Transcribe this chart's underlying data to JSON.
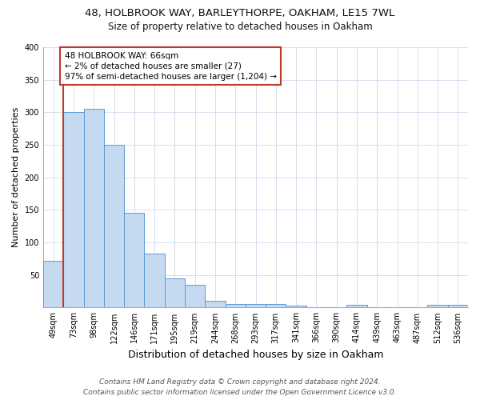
{
  "title": "48, HOLBROOK WAY, BARLEYTHORPE, OAKHAM, LE15 7WL",
  "subtitle": "Size of property relative to detached houses in Oakham",
  "xlabel": "Distribution of detached houses by size in Oakham",
  "ylabel": "Number of detached properties",
  "bar_labels": [
    "49sqm",
    "73sqm",
    "98sqm",
    "122sqm",
    "146sqm",
    "171sqm",
    "195sqm",
    "219sqm",
    "244sqm",
    "268sqm",
    "293sqm",
    "317sqm",
    "341sqm",
    "366sqm",
    "390sqm",
    "414sqm",
    "439sqm",
    "463sqm",
    "487sqm",
    "512sqm",
    "536sqm"
  ],
  "bar_values": [
    72,
    300,
    305,
    250,
    145,
    83,
    45,
    35,
    10,
    6,
    6,
    6,
    3,
    0,
    0,
    4,
    0,
    0,
    0,
    4,
    4
  ],
  "bar_color": "#c5d9f0",
  "bar_edge_color": "#5b9bd5",
  "vline_color": "#c0392b",
  "annotation_text": "48 HOLBROOK WAY: 66sqm\n← 2% of detached houses are smaller (27)\n97% of semi-detached houses are larger (1,204) →",
  "annotation_box_facecolor": "#ffffff",
  "annotation_box_edgecolor": "#c0392b",
  "ylim": [
    0,
    400
  ],
  "yticks": [
    0,
    50,
    100,
    150,
    200,
    250,
    300,
    350,
    400
  ],
  "footer_line1": "Contains HM Land Registry data © Crown copyright and database right 2024.",
  "footer_line2": "Contains public sector information licensed under the Open Government Licence v3.0.",
  "bg_color": "#ffffff",
  "plot_bg_color": "#ffffff",
  "title_fontsize": 9.5,
  "subtitle_fontsize": 8.5,
  "xlabel_fontsize": 9,
  "ylabel_fontsize": 8,
  "tick_fontsize": 7,
  "annotation_fontsize": 7.5,
  "footer_fontsize": 6.5
}
